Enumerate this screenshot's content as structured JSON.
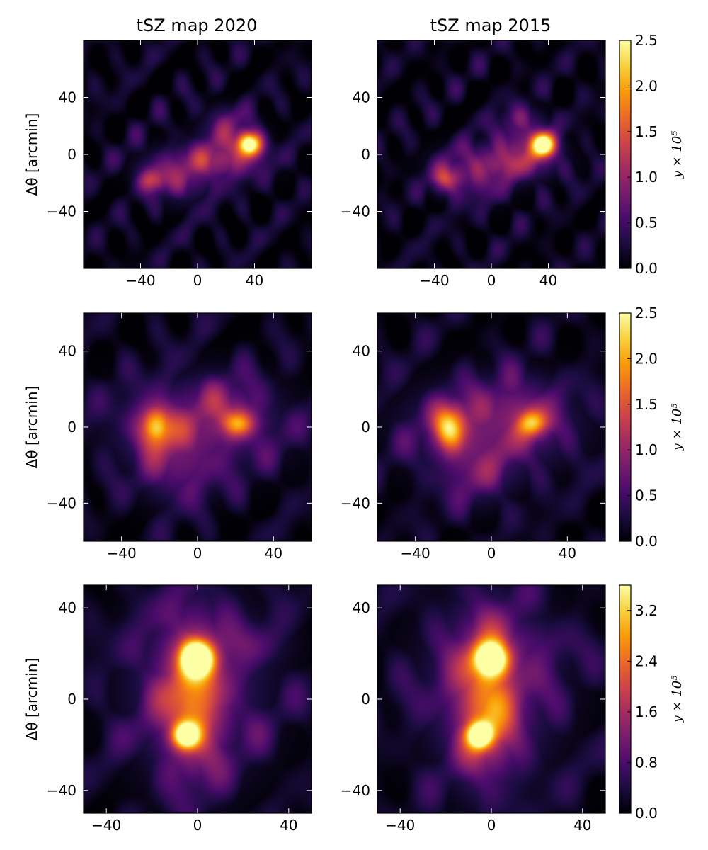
{
  "chart_data": {
    "type": "heatmap",
    "colormap": "inferno",
    "colors": {
      "stops": [
        "#000004",
        "#1b0c41",
        "#4a0c6b",
        "#781c6d",
        "#a52c60",
        "#cf4446",
        "#ed6925",
        "#fb9b06",
        "#f7d13d",
        "#fcffa4"
      ]
    },
    "column_titles": [
      "tSZ map 2020",
      "tSZ map 2015"
    ],
    "ylabel": "Δθ [arcmin]",
    "colorbar_label": "y × 10⁵",
    "rows": [
      {
        "xlim": [
          -80,
          80
        ],
        "ylim": [
          -80,
          80
        ],
        "xticks": [
          -40,
          0,
          40
        ],
        "yticks": [
          -40,
          0,
          40
        ],
        "xtick_labels": [
          "−40",
          "0",
          "40"
        ],
        "ytick_labels": [
          "−40",
          "0",
          "40"
        ],
        "colorbar": {
          "min": 0,
          "max": 2.5,
          "ticks": [
            0.0,
            0.5,
            1.0,
            1.5,
            2.0,
            2.5
          ],
          "tick_labels": [
            "0.0",
            "0.5",
            "1.0",
            "1.5",
            "2.0",
            "2.5"
          ]
        },
        "blobs": [
          {
            "x": 37,
            "y": 7,
            "amp": 2.6,
            "sx": 6,
            "sy": 6
          },
          {
            "x": -32,
            "y": -18,
            "amp": 1.05,
            "sx": 7,
            "sy": 6
          },
          {
            "x": 5,
            "y": -6,
            "amp": 0.75,
            "sx": 26,
            "sy": 9
          },
          {
            "x": 22,
            "y": 8,
            "amp": 0.55,
            "sx": 14,
            "sy": 12
          },
          {
            "x": -10,
            "y": -22,
            "amp": 0.4,
            "sx": 14,
            "sy": 10
          },
          {
            "x": 20,
            "y": 25,
            "amp": 0.35,
            "sx": 10,
            "sy": 7
          }
        ]
      },
      {
        "xlim": [
          -60,
          60
        ],
        "ylim": [
          -60,
          60
        ],
        "xticks": [
          -40,
          0,
          40
        ],
        "yticks": [
          -40,
          0,
          40
        ],
        "xtick_labels": [
          "−40",
          "0",
          "40"
        ],
        "ytick_labels": [
          "−40",
          "0",
          "40"
        ],
        "colorbar": {
          "min": 0,
          "max": 2.5,
          "ticks": [
            0.0,
            0.5,
            1.0,
            1.5,
            2.0,
            2.5
          ],
          "tick_labels": [
            "0.0",
            "0.5",
            "1.0",
            "1.5",
            "2.0",
            "2.5"
          ]
        },
        "blobs": [
          {
            "x": -22,
            "y": 0,
            "amp": 1.65,
            "sx": 6,
            "sy": 8
          },
          {
            "x": 22,
            "y": 2,
            "amp": 1.35,
            "sx": 6,
            "sy": 5
          },
          {
            "x": 0,
            "y": 0,
            "amp": 0.7,
            "sx": 30,
            "sy": 16
          },
          {
            "x": -10,
            "y": -25,
            "amp": 0.45,
            "sx": 14,
            "sy": 12
          },
          {
            "x": 15,
            "y": 15,
            "amp": 0.3,
            "sx": 14,
            "sy": 10
          }
        ]
      },
      {
        "xlim": [
          -50,
          50
        ],
        "ylim": [
          -50,
          50
        ],
        "xticks": [
          -40,
          0,
          40
        ],
        "yticks": [
          -40,
          0,
          40
        ],
        "xtick_labels": [
          "−40",
          "0",
          "40"
        ],
        "ytick_labels": [
          "−40",
          "0",
          "40"
        ],
        "colorbar": {
          "min": 0,
          "max": 3.6,
          "ticks": [
            0.0,
            0.8,
            1.6,
            2.4,
            3.2
          ],
          "tick_labels": [
            "0.0",
            "0.8",
            "1.6",
            "2.4",
            "3.2"
          ]
        },
        "blobs": [
          {
            "x": 0,
            "y": 18,
            "amp": 3.8,
            "sx": 5,
            "sy": 5
          },
          {
            "x": -5,
            "y": -16,
            "amp": 3.4,
            "sx": 4,
            "sy": 4
          },
          {
            "x": -2,
            "y": 0,
            "amp": 1.8,
            "sx": 9,
            "sy": 22
          },
          {
            "x": 0,
            "y": 5,
            "amp": 0.8,
            "sx": 22,
            "sy": 28
          },
          {
            "x": 25,
            "y": 25,
            "amp": 0.3,
            "sx": 12,
            "sy": 6
          }
        ]
      }
    ]
  }
}
